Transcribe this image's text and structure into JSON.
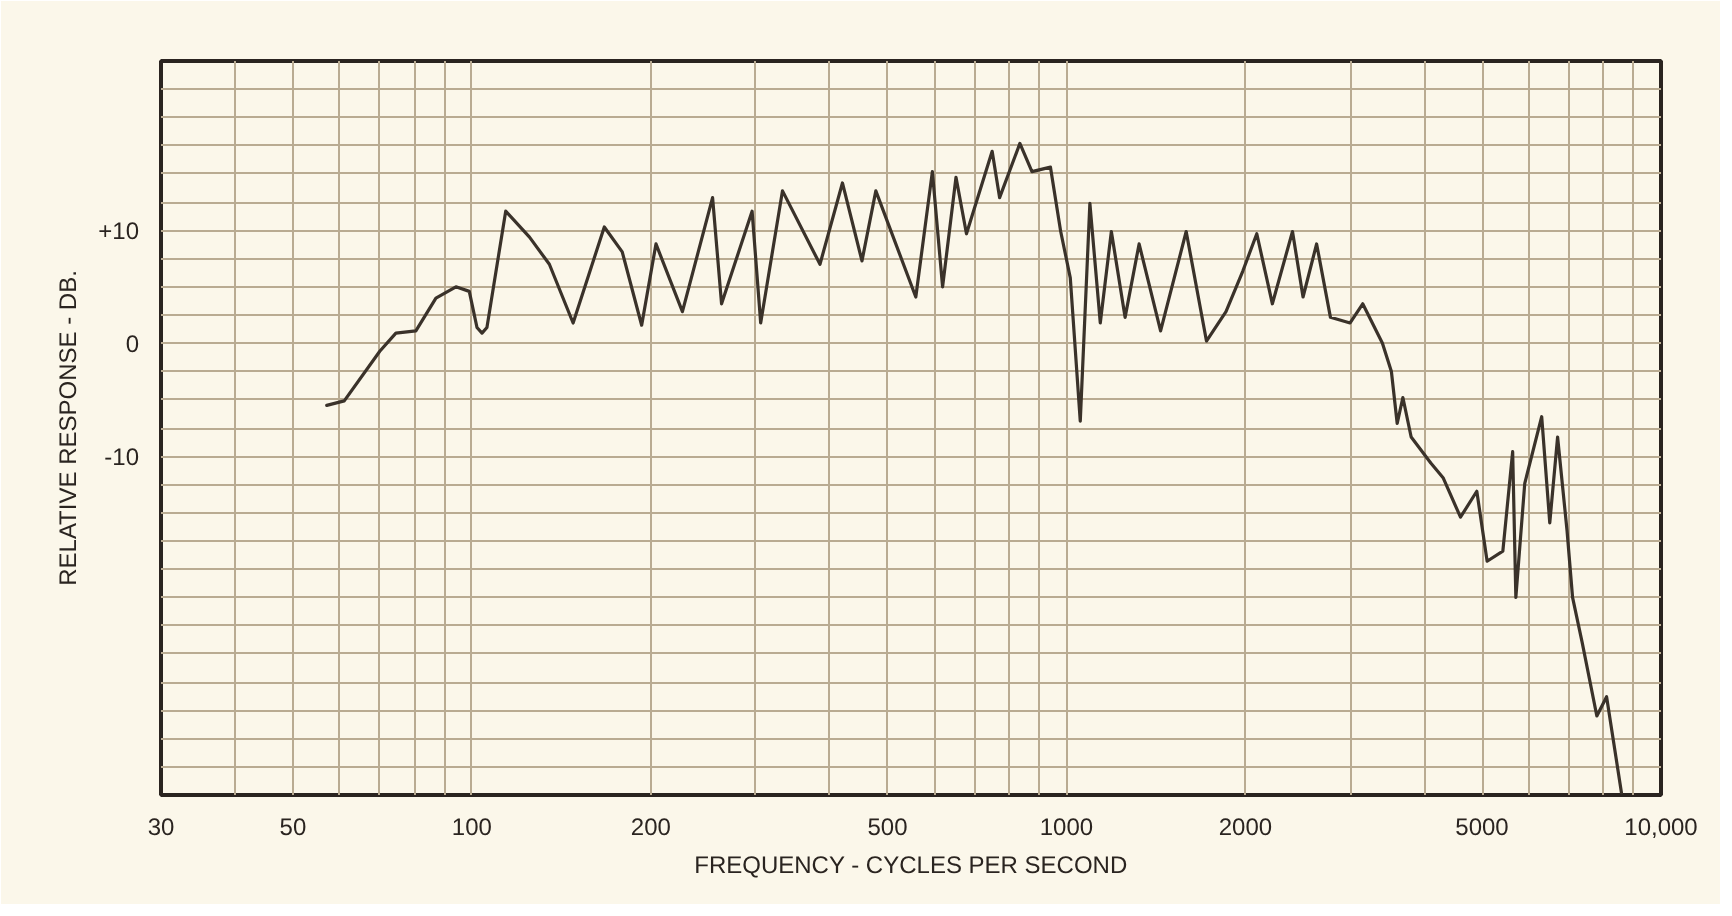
{
  "chart_data": {
    "type": "line",
    "xlabel": "FREQUENCY - CYCLES PER SECOND",
    "ylabel": "RELATIVE RESPONSE - DB.",
    "log": "x",
    "grid": true,
    "marker": "none",
    "line_style": "solid",
    "xlim": [
      30,
      10000
    ],
    "ylim": [
      -40,
      25
    ],
    "xticks": [
      30,
      {
        "value": 40,
        "label": null
      },
      50,
      {
        "value": 60,
        "label": null
      },
      {
        "value": 70,
        "label": null
      },
      {
        "value": 80,
        "label": null
      },
      {
        "value": 90,
        "label": null
      },
      100,
      200,
      {
        "value": 300,
        "label": null
      },
      {
        "value": 400,
        "label": null
      },
      500,
      {
        "value": 600,
        "label": null
      },
      {
        "value": 700,
        "label": null
      },
      {
        "value": 800,
        "label": null
      },
      {
        "value": 900,
        "label": null
      },
      1000,
      2000,
      {
        "value": 3000,
        "label": null
      },
      {
        "value": 4000,
        "label": null
      },
      5000,
      {
        "value": 6000,
        "label": null
      },
      {
        "value": 7000,
        "label": null
      },
      {
        "value": 8000,
        "label": null
      },
      {
        "value": 9000,
        "label": null
      },
      {
        "value": 10000,
        "label": "10,000"
      }
    ],
    "yticks": [
      {
        "value": -40,
        "label": null
      },
      {
        "value": -37.5,
        "label": null
      },
      {
        "value": -35,
        "label": null
      },
      {
        "value": -32.5,
        "label": null
      },
      {
        "value": -30,
        "label": null
      },
      {
        "value": -27.5,
        "label": null
      },
      {
        "value": -25,
        "label": null
      },
      {
        "value": -22.5,
        "label": null
      },
      {
        "value": -20,
        "label": null
      },
      {
        "value": -17.5,
        "label": null
      },
      {
        "value": -15,
        "label": null
      },
      {
        "value": -12.5,
        "label": null
      },
      -10,
      {
        "value": -7.5,
        "label": null
      },
      {
        "value": -5,
        "label": null
      },
      {
        "value": -2.5,
        "label": null
      },
      0,
      {
        "value": 2.5,
        "label": null
      },
      {
        "value": 5,
        "label": null
      },
      {
        "value": 7.5,
        "label": null
      },
      {
        "value": 10,
        "label": "+10"
      },
      {
        "value": 12.5,
        "label": null
      },
      {
        "value": 15,
        "label": null
      },
      {
        "value": 17.5,
        "label": null
      },
      {
        "value": 20,
        "label": null
      },
      {
        "value": 22.5,
        "label": null
      },
      {
        "value": 25,
        "label": null
      }
    ],
    "series": [
      {
        "color": "#3a322a",
        "x": [
          57,
          61,
          70,
          74.5,
          80.5,
          87,
          94,
          99,
          102,
          104,
          106,
          114,
          125,
          135,
          148,
          167,
          179,
          193,
          204,
          226,
          254,
          263,
          296,
          306,
          333,
          385,
          420,
          453,
          478,
          558,
          595,
          619,
          652,
          679,
          750,
          772,
          835,
          875,
          940,
          978,
          1015,
          1055,
          1095,
          1140,
          1190,
          1255,
          1325,
          1440,
          1590,
          1720,
          1855,
          1980,
          2090,
          2220,
          2400,
          2500,
          2635,
          2780,
          3000,
          3150,
          3400,
          3520,
          3600,
          3680,
          3800,
          4100,
          4300,
          4600,
          4900,
          5100,
          5420,
          5630,
          5700,
          5900,
          6300,
          6500,
          6700,
          6950,
          7100,
          7370,
          7800,
          8100,
          8580
        ],
        "values": [
          -5.5,
          -5.1,
          -0.7,
          0.9,
          1.1,
          4,
          5,
          4.6,
          1.4,
          0.9,
          1.4,
          11.7,
          9.4,
          7,
          1.8,
          10.3,
          8.1,
          1.6,
          8.8,
          2.8,
          12.9,
          3.5,
          11.7,
          1.8,
          13.5,
          7,
          14.2,
          7.3,
          13.5,
          4.1,
          15.2,
          5,
          14.7,
          9.7,
          17,
          12.9,
          17.7,
          15.2,
          15.6,
          9.9,
          5.8,
          -6.9,
          12.4,
          1.8,
          9.9,
          2.3,
          8.8,
          1.1,
          9.9,
          0.2,
          2.8,
          6.4,
          9.7,
          3.5,
          9.9,
          4.1,
          8.8,
          2.3,
          1.8,
          3.5,
          0,
          -2.5,
          -7.1,
          -4.8,
          -8.3,
          -10.6,
          -11.9,
          -15.4,
          -13.1,
          -19.3,
          -18.4,
          -9.6,
          -22.5,
          -12.4,
          -6.5,
          -15.9,
          -8.3,
          -16.6,
          -22.5,
          -26.5,
          -33,
          -31.3,
          -39.8
        ]
      }
    ]
  }
}
